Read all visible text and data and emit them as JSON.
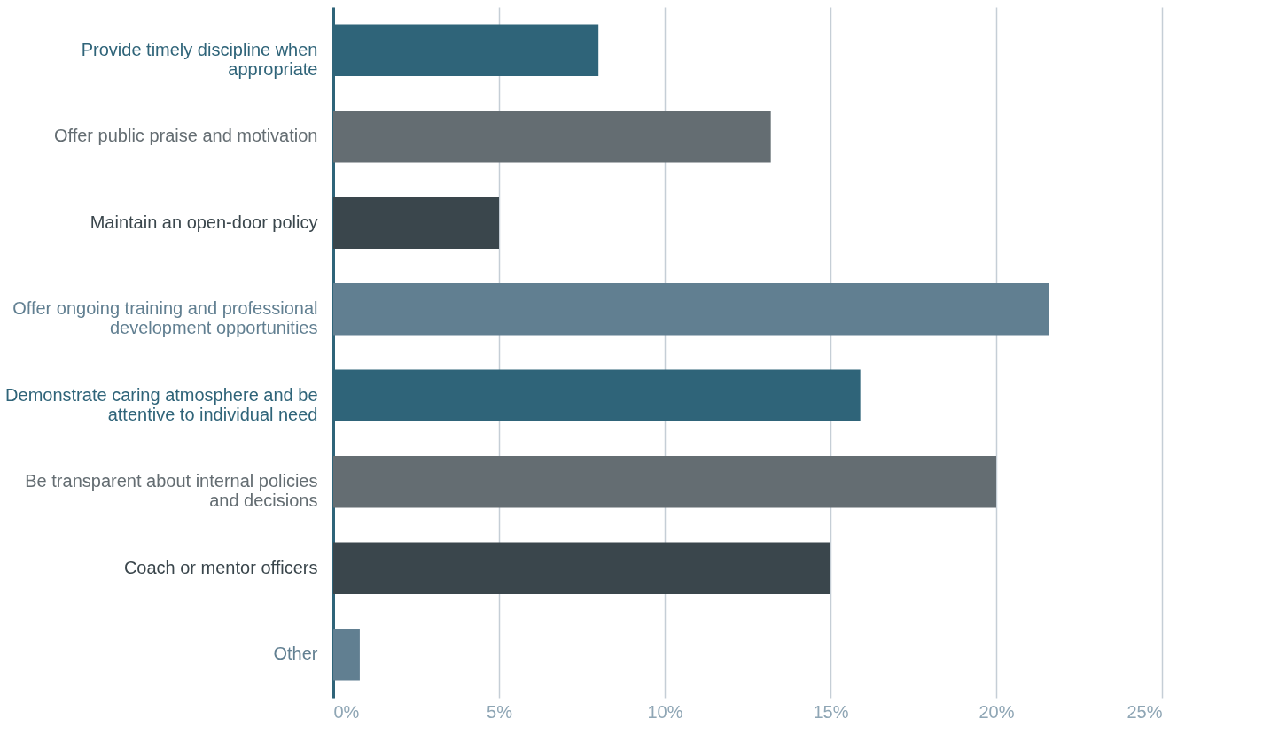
{
  "chart_data": {
    "type": "bar",
    "orientation": "horizontal",
    "categories": [
      "Provide timely discipline when appropriate",
      "Offer public praise and motivation",
      "Maintain an open-door policy",
      "Offer ongoing training and professional development opportunities",
      "Demonstrate caring atmosphere and be attentive to individual need",
      "Be transparent about internal policies and decisions",
      "Coach or mentor officers",
      "Other"
    ],
    "values": [
      8,
      13.2,
      5,
      21.6,
      15.9,
      20,
      15,
      0.8
    ],
    "colors": [
      "#2f6479",
      "#646d72",
      "#3a464c",
      "#617f91",
      "#2f6479",
      "#646d72",
      "#3a464c",
      "#617f91"
    ],
    "xlim": [
      0,
      25
    ],
    "xticks": [
      {
        "value": 0,
        "label": "0%"
      },
      {
        "value": 5,
        "label": "5%"
      },
      {
        "value": 10,
        "label": "10%"
      },
      {
        "value": 15,
        "label": "15%"
      },
      {
        "value": 20,
        "label": "20%"
      },
      {
        "value": 25,
        "label": "25%"
      }
    ],
    "grid": "x",
    "legend": false
  }
}
